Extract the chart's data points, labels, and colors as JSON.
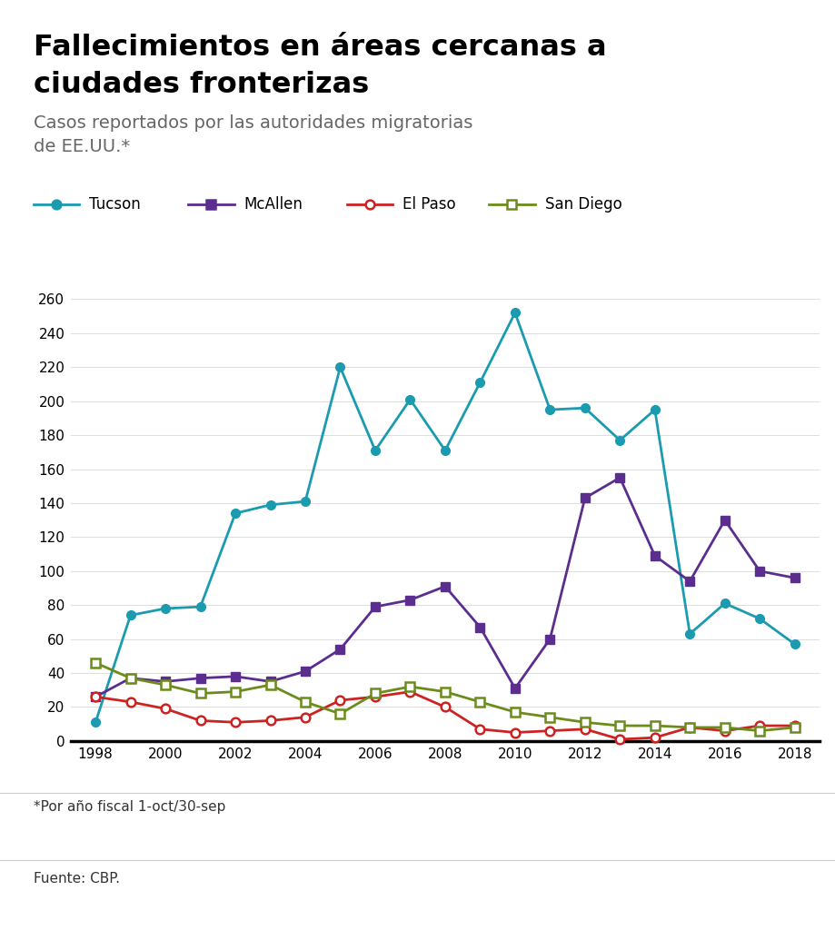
{
  "title_line1": "Fallecimientos en áreas cercanas a",
  "title_line2": "ciudades fronterizas",
  "subtitle_line1": "Casos reportados por las autoridades migratorias",
  "subtitle_line2": "de EE.UU.*",
  "footnote": "*Por año fiscal 1-oct/30-sep",
  "source": "Fuente: CBP.",
  "years": [
    1998,
    1999,
    2000,
    2001,
    2002,
    2003,
    2004,
    2005,
    2006,
    2007,
    2008,
    2009,
    2010,
    2011,
    2012,
    2013,
    2014,
    2015,
    2016,
    2017,
    2018
  ],
  "tucson": [
    11,
    74,
    78,
    79,
    134,
    139,
    141,
    220,
    171,
    201,
    171,
    211,
    252,
    195,
    196,
    177,
    195,
    63,
    81,
    72,
    57
  ],
  "mcallen": [
    26,
    37,
    35,
    37,
    38,
    35,
    41,
    54,
    79,
    83,
    91,
    67,
    31,
    60,
    143,
    155,
    109,
    94,
    130,
    100,
    96
  ],
  "el_paso": [
    26,
    23,
    19,
    12,
    11,
    12,
    14,
    24,
    26,
    29,
    20,
    7,
    5,
    6,
    7,
    1,
    2,
    8,
    6,
    9,
    9
  ],
  "san_diego": [
    46,
    37,
    33,
    28,
    29,
    33,
    23,
    16,
    28,
    32,
    29,
    23,
    17,
    14,
    11,
    9,
    9,
    8,
    8,
    6,
    8
  ],
  "tucson_color": "#1a9bb0",
  "mcallen_color": "#5b2d8e",
  "el_paso_color": "#cc2222",
  "san_diego_color": "#6b8c1a",
  "ylim": [
    0,
    260
  ],
  "yticks": [
    0,
    20,
    40,
    60,
    80,
    100,
    120,
    140,
    160,
    180,
    200,
    220,
    240,
    260
  ],
  "background_color": "#ffffff"
}
